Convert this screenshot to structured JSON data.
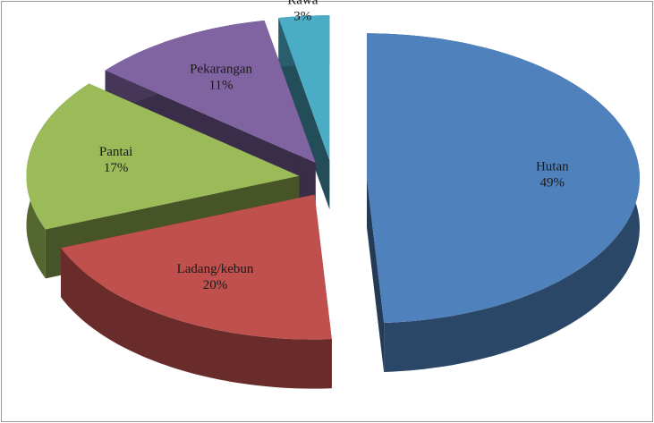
{
  "chart_data": {
    "type": "pie",
    "categories": [
      "Hutan",
      "Ladang/kebun",
      "Pantai",
      "Pekarangan",
      "Rawa"
    ],
    "values": [
      49,
      20,
      17,
      11,
      3
    ],
    "value_labels": [
      "49%",
      "20%",
      "17%",
      "11%",
      "3%"
    ],
    "colors": [
      "#4f81bd",
      "#c0504d",
      "#9bbb59",
      "#8064a2",
      "#4bacc6"
    ],
    "three_d": true,
    "exploded": true
  }
}
